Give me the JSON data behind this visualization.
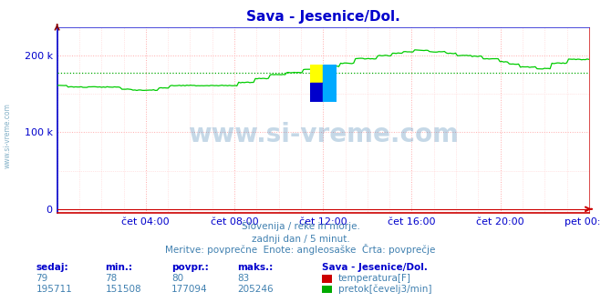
{
  "title": "Sava - Jesenice/Dol.",
  "title_color": "#0000cc",
  "bg_color": "#ffffff",
  "plot_bg_color": "#ffffff",
  "grid_color_major": "#ffaaaa",
  "grid_color_minor": "#ffcccc",
  "spine_color": "#0000cc",
  "xaxis_color": "#cc0000",
  "xlabel_ticks": [
    "čet 04:00",
    "čet 08:00",
    "čet 12:00",
    "čet 16:00",
    "čet 20:00",
    "pet 00:00"
  ],
  "ylabel_ticks": [
    "0",
    "100 k",
    "200 k"
  ],
  "ylabel_values": [
    0,
    100000,
    200000
  ],
  "ymax": 237000,
  "ymin": -5000,
  "tick_color": "#0000cc",
  "watermark": "www.si-vreme.com",
  "watermark_color": "#4080b0",
  "watermark_alpha": 0.3,
  "left_label": "www.si-vreme.com",
  "left_label_color": "#5090b0",
  "subtitle1": "Slovenija / reke in morje.",
  "subtitle2": "zadnji dan / 5 minut.",
  "subtitle3": "Meritve: povprečne  Enote: angleosaške  Črta: povprečje",
  "subtitle_color": "#4080b0",
  "table_headers": [
    "sedaj:",
    "min.:",
    "povpr.:",
    "maks.:"
  ],
  "table_header_color": "#0000cc",
  "station_label": "Sava - Jesenice/Dol.",
  "station_label_color": "#0000cc",
  "row1_values": [
    "79",
    "78",
    "80",
    "83"
  ],
  "row1_color": "#4080b0",
  "row2_values": [
    "195711",
    "151508",
    "177094",
    "205246"
  ],
  "row2_color": "#4080b0",
  "legend1_color": "#cc0000",
  "legend1_label": "temperatura[F]",
  "legend2_color": "#00aa00",
  "legend2_label": "pretok[čevelj3/min]",
  "avg_line_value": 177094,
  "avg_line_color": "#00aa00",
  "line1_color": "#cc0000",
  "line2_color": "#00cc00",
  "num_points": 288,
  "logo_colors": [
    "#ffff00",
    "#00aaff",
    "#0000cc",
    "#00aaff"
  ]
}
